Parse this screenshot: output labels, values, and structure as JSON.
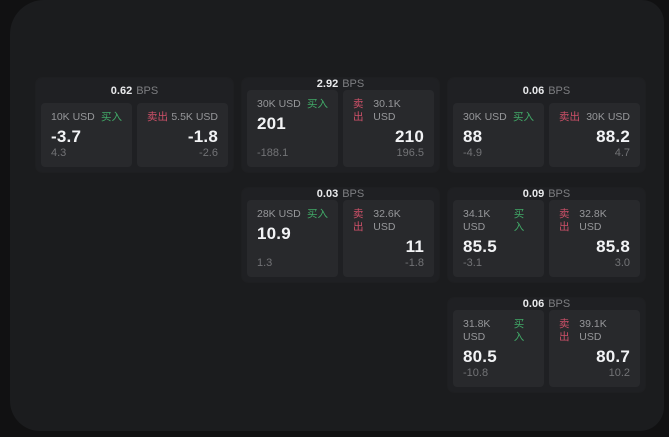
{
  "labels": {
    "bps_unit": "BPS",
    "buy": "买入",
    "sell": "卖出"
  },
  "colors": {
    "buy_green": "#41aa68",
    "sell_red": "#cd5068",
    "page_bg": "#111112",
    "panel_bg": "#1b1c1e",
    "card_bg": "#1f2023",
    "tile_bg": "#28292c"
  },
  "cards": [
    {
      "col": 1,
      "row": 1,
      "bps": "0.62",
      "buy": {
        "amount": "10K USD",
        "price": "-3.7",
        "change": "4.3"
      },
      "sell": {
        "amount": "5.5K USD",
        "price": "-1.8",
        "change": "-2.6"
      }
    },
    {
      "col": 2,
      "row": 1,
      "bps": "2.92",
      "buy": {
        "amount": "30K USD",
        "price": "201",
        "change": "-188.1"
      },
      "sell": {
        "amount": "30.1K USD",
        "price": "210",
        "change": "196.5"
      }
    },
    {
      "col": 3,
      "row": 1,
      "bps": "0.06",
      "buy": {
        "amount": "30K USD",
        "price": "88",
        "change": "-4.9"
      },
      "sell": {
        "amount": "30K USD",
        "price": "88.2",
        "change": "4.7"
      }
    },
    {
      "col": 2,
      "row": 2,
      "bps": "0.03",
      "buy": {
        "amount": "28K USD",
        "price": "10.9",
        "change": "1.3"
      },
      "sell": {
        "amount": "32.6K USD",
        "price": "11",
        "change": "-1.8"
      }
    },
    {
      "col": 3,
      "row": 2,
      "bps": "0.09",
      "buy": {
        "amount": "34.1K USD",
        "price": "85.5",
        "change": "-3.1"
      },
      "sell": {
        "amount": "32.8K USD",
        "price": "85.8",
        "change": "3.0"
      }
    },
    {
      "col": 3,
      "row": 3,
      "bps": "0.06",
      "buy": {
        "amount": "31.8K USD",
        "price": "80.5",
        "change": "-10.8"
      },
      "sell": {
        "amount": "39.1K USD",
        "price": "80.7",
        "change": "10.2"
      }
    }
  ]
}
